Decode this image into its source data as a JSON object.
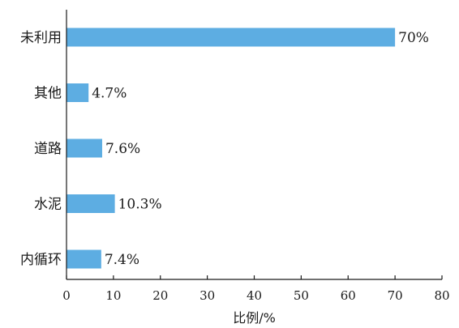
{
  "chart_data": {
    "type": "bar",
    "orientation": "horizontal",
    "categories": [
      "未利用",
      "其他",
      "道路",
      "水泥",
      "内循环"
    ],
    "values": [
      70,
      4.7,
      7.6,
      10.3,
      7.4
    ],
    "value_labels": [
      "70%",
      "4.7%",
      "7.6%",
      "10.3%",
      "7.4%"
    ],
    "xlabel": "比例/%",
    "xlim": [
      0,
      80
    ],
    "xticks": [
      0,
      10,
      20,
      30,
      40,
      50,
      60,
      70,
      80
    ],
    "bar_color": "#5dade2",
    "axis_color": "#1a1a1a",
    "grid": false
  }
}
